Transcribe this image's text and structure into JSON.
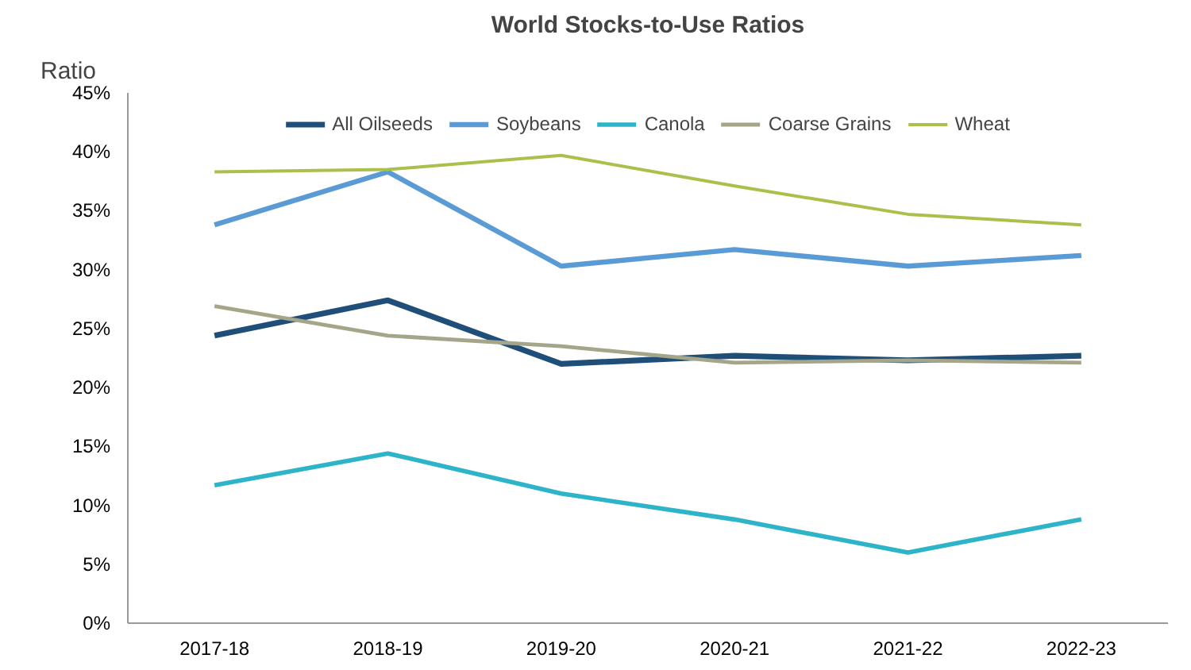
{
  "chart_data": {
    "type": "line",
    "title": "World Stocks-to-Use Ratios",
    "ylabel": "Ratio",
    "categories": [
      "2017-18",
      "2018-19",
      "2019-20",
      "2020-21",
      "2021-22",
      "2022-23"
    ],
    "series": [
      {
        "name": "All Oilseeds",
        "color": "#1f4e79",
        "values": [
          24.4,
          27.4,
          22.0,
          22.7,
          22.3,
          22.7
        ]
      },
      {
        "name": "Soybeans",
        "color": "#5b9bd5",
        "values": [
          33.8,
          38.3,
          30.3,
          31.7,
          30.3,
          31.2
        ]
      },
      {
        "name": "Canola",
        "color": "#2eb4c8",
        "values": [
          11.7,
          14.4,
          11.0,
          8.8,
          6.0,
          8.8
        ]
      },
      {
        "name": "Coarse Grains",
        "color": "#a5a58a",
        "values": [
          26.9,
          24.4,
          23.5,
          22.1,
          22.3,
          22.1
        ]
      },
      {
        "name": "Wheat",
        "color": "#a9c04a",
        "values": [
          38.3,
          38.5,
          39.7,
          37.1,
          34.7,
          33.8
        ]
      }
    ],
    "ylim": [
      0,
      45
    ],
    "yticks": [
      {
        "value": 0,
        "label": "0%"
      },
      {
        "value": 5,
        "label": "5%"
      },
      {
        "value": 10,
        "label": "10%"
      },
      {
        "value": 15,
        "label": "15%"
      },
      {
        "value": 20,
        "label": "20%"
      },
      {
        "value": 25,
        "label": "25%"
      },
      {
        "value": 30,
        "label": "30%"
      },
      {
        "value": 35,
        "label": "35%"
      },
      {
        "value": 40,
        "label": "40%"
      },
      {
        "value": 45,
        "label": "45%"
      }
    ],
    "grid": false,
    "legend": "top",
    "marker": "none",
    "line_style": "solid"
  }
}
